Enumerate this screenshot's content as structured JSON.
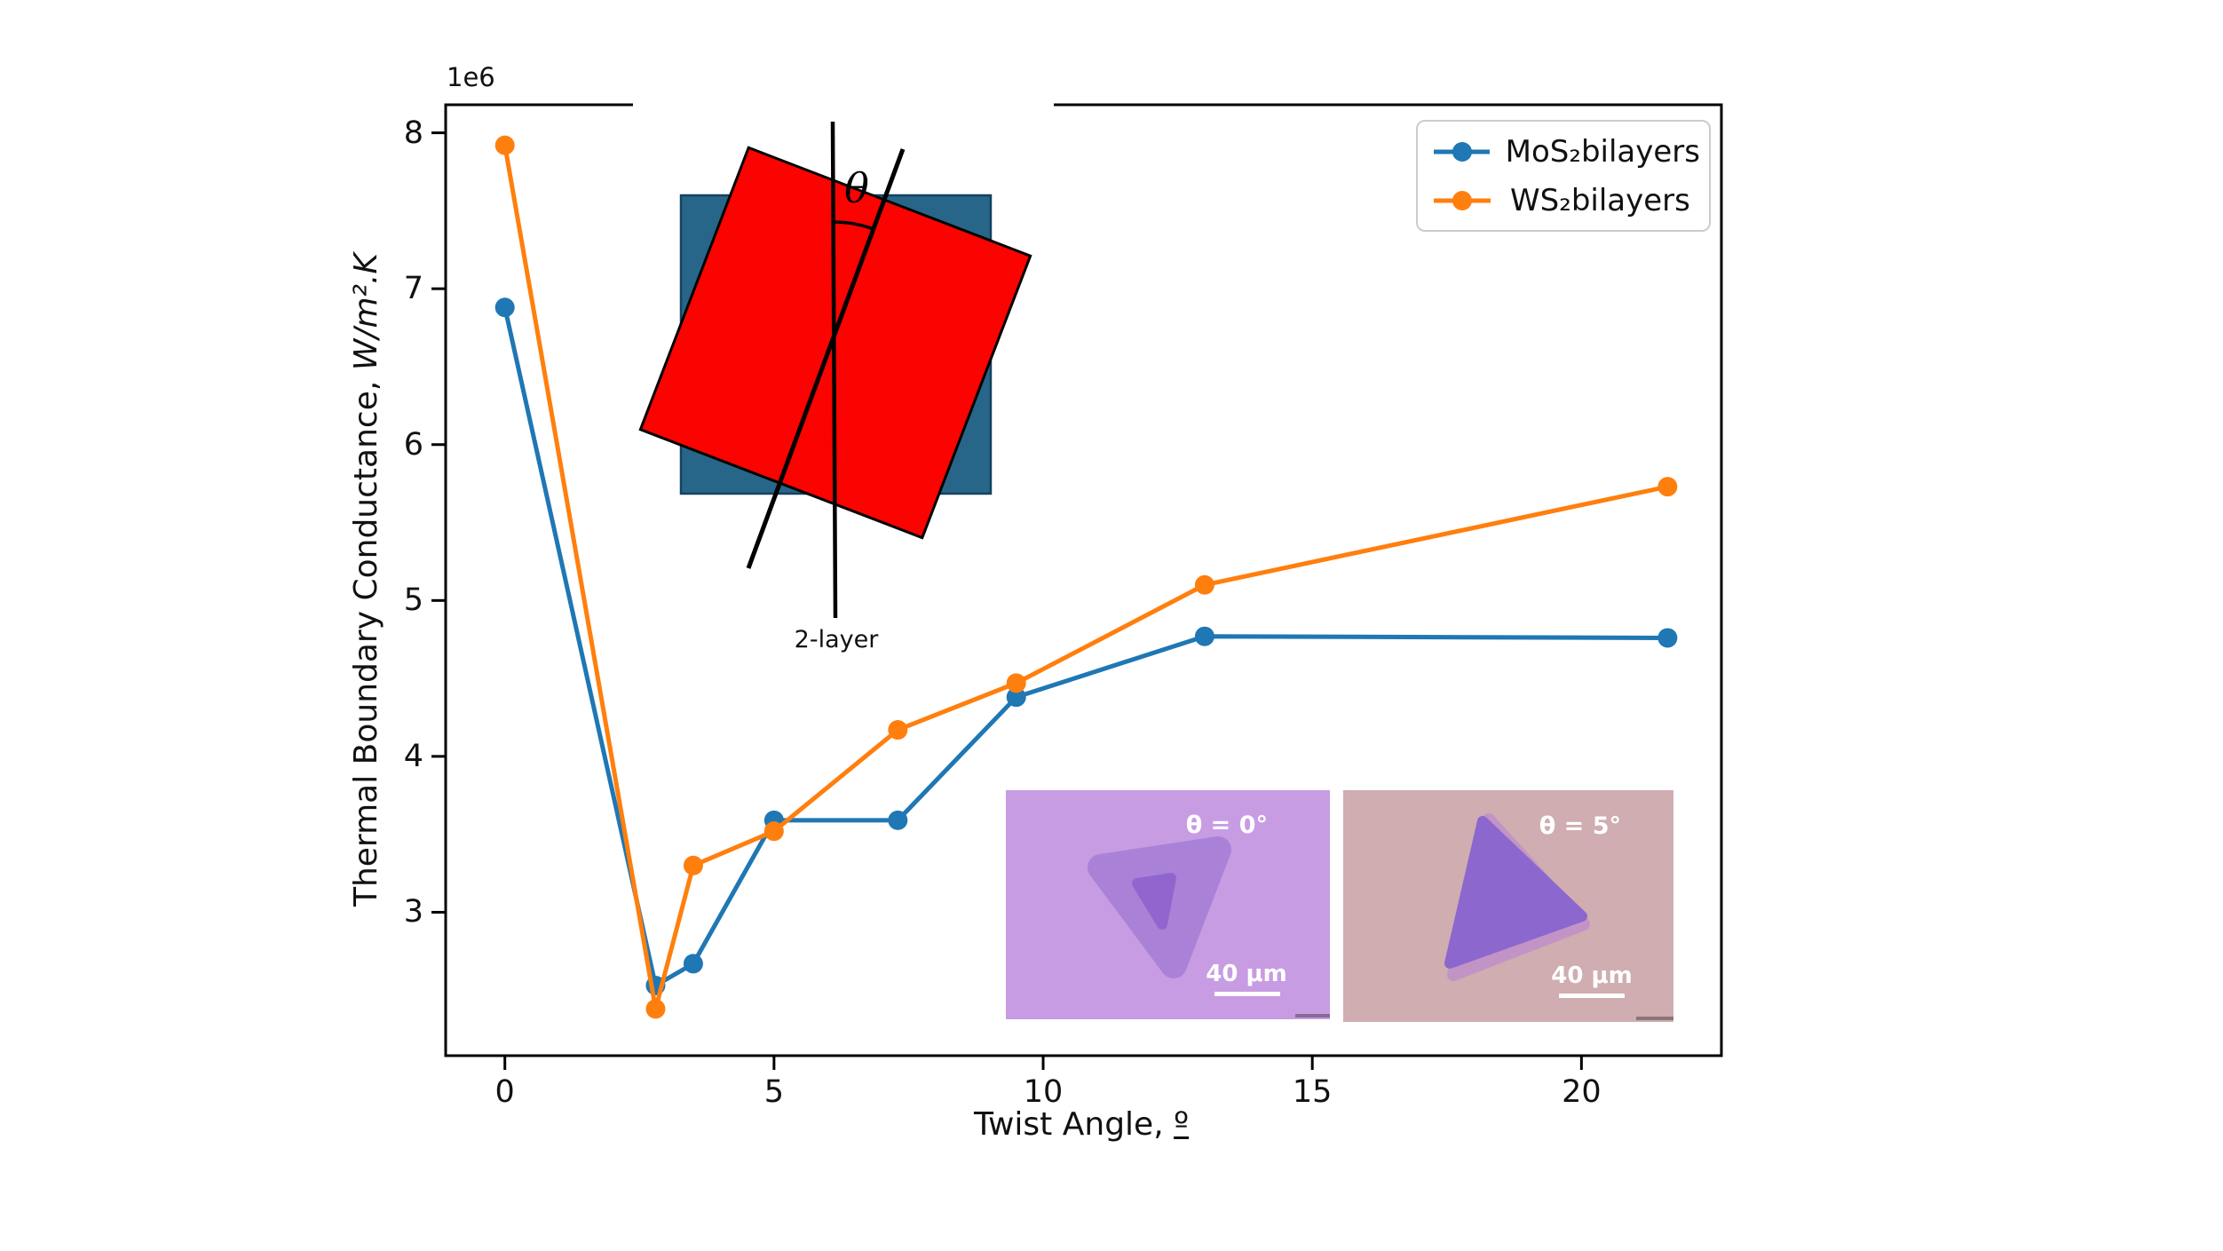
{
  "axes": {
    "offset_text": "1e6",
    "xlabel_prefix": "Twist Angle, ",
    "xlabel_ordinal": "º",
    "ylabel_prefix": "Thermal Boundary Conductance, ",
    "ylabel_units": "W/m².K",
    "xlim": [
      -1.1,
      22.6
    ],
    "ylim": [
      2.08,
      8.18
    ],
    "xticks": [
      0,
      5,
      10,
      15,
      20
    ],
    "yticks": [
      3,
      4,
      5,
      6,
      7,
      8
    ]
  },
  "chart_data": {
    "type": "line",
    "title": "",
    "xlabel": "Twist Angle, º",
    "ylabel": "Thermal Boundary Conductance, W/m².K",
    "y_offset_multiplier": "1e6",
    "xlim": [
      -1.1,
      22.6
    ],
    "ylim_1e6": [
      2.08,
      8.18
    ],
    "grid": false,
    "legend_position": "upper right",
    "series": [
      {
        "name": "MoS₂bilayers",
        "color": "#1f77b4",
        "marker": "circle",
        "x": [
          0,
          2.8,
          3.5,
          5,
          7.3,
          9.5,
          13,
          21.6
        ],
        "y_1e6": [
          6.88,
          2.53,
          2.67,
          3.59,
          3.59,
          4.38,
          4.77,
          4.76
        ]
      },
      {
        "name": "WS₂bilayers",
        "color": "#ff7f0e",
        "marker": "circle",
        "x": [
          0,
          2.8,
          3.5,
          5,
          7.3,
          9.5,
          13,
          21.6
        ],
        "y_1e6": [
          7.92,
          2.38,
          3.3,
          3.52,
          4.17,
          4.47,
          5.1,
          5.73
        ]
      }
    ]
  },
  "diagram_inset": {
    "theta_label": "θ",
    "caption": "2-layer",
    "top_square_color": "#fb0300",
    "bottom_square_color": "#276589"
  },
  "micrographs": [
    {
      "label": "θ = 0°",
      "scale_label": "40 μm",
      "bg_color": "#c79ce3",
      "outer_triangle_color": "#a982d8",
      "inner_triangle_color": "#9066ce"
    },
    {
      "label": "θ = 5°",
      "scale_label": "40 μm",
      "bg_color": "#cfadb0",
      "back_triangle_color": "#c294c6",
      "front_triangle_color": "#8c67cd"
    }
  ]
}
